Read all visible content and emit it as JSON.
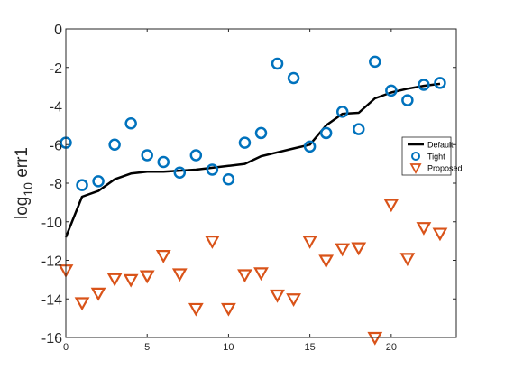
{
  "chart_data": {
    "type": "line",
    "xlim": [
      0,
      24
    ],
    "ylim": [
      -16,
      0
    ],
    "x_ticks": [
      0,
      5,
      10,
      15,
      20
    ],
    "x_tick_labels": [
      "0",
      "5",
      "10",
      "15",
      "20"
    ],
    "y_ticks": [
      0,
      -2,
      -4,
      -6,
      -8,
      -10,
      -12,
      -14,
      -16
    ],
    "y_tick_labels": [
      "0",
      "-2",
      "-4",
      "-6",
      "-8",
      "-10",
      "-12",
      "-14",
      "-16"
    ],
    "ylabel": {
      "main": "log",
      "sub": "10",
      "tail": " err1"
    },
    "xlabel": "",
    "grid": false,
    "legend_position": "middle-right",
    "series": [
      {
        "name": "Default",
        "type": "line",
        "color": "#000000",
        "x": [
          0,
          1,
          2,
          3,
          4,
          5,
          6,
          7,
          8,
          9,
          10,
          11,
          12,
          13,
          14,
          15,
          16,
          17,
          18,
          19,
          20,
          21,
          22,
          23
        ],
        "values": [
          -10.8,
          -8.7,
          -8.4,
          -7.8,
          -7.5,
          -7.4,
          -7.4,
          -7.35,
          -7.3,
          -7.2,
          -7.1,
          -7.0,
          -6.6,
          -6.4,
          -6.2,
          -6.0,
          -5.0,
          -4.4,
          -4.35,
          -3.6,
          -3.3,
          -3.1,
          -2.95,
          -2.85
        ]
      },
      {
        "name": "Tight",
        "type": "circle",
        "color": "#0072BD",
        "x": [
          0,
          1,
          2,
          3,
          4,
          5,
          6,
          7,
          8,
          9,
          10,
          11,
          12,
          13,
          14,
          15,
          16,
          17,
          18,
          19,
          20,
          21,
          22,
          23
        ],
        "values": [
          -5.9,
          -8.1,
          -7.9,
          -6.0,
          -4.9,
          -6.55,
          -6.9,
          -7.45,
          -6.55,
          -7.3,
          -7.8,
          -5.9,
          -5.4,
          -1.8,
          -2.55,
          -6.1,
          -5.4,
          -4.3,
          -5.2,
          -1.7,
          -3.2,
          -3.7,
          -2.9,
          -2.8
        ]
      },
      {
        "name": "Proposed",
        "type": "triangle-down",
        "color": "#D95319",
        "x": [
          0,
          1,
          2,
          3,
          4,
          5,
          6,
          7,
          8,
          9,
          10,
          11,
          12,
          13,
          14,
          15,
          16,
          17,
          18,
          19,
          20,
          21,
          22,
          23
        ],
        "values": [
          -12.5,
          -14.2,
          -13.7,
          -12.95,
          -13.0,
          -12.8,
          -11.75,
          -12.7,
          -14.5,
          -11.0,
          -14.5,
          -12.75,
          -12.65,
          -13.8,
          -14.0,
          -11.0,
          -12.0,
          -11.4,
          -11.35,
          -16.0,
          -9.1,
          -11.9,
          -10.3,
          -10.6
        ]
      }
    ]
  }
}
